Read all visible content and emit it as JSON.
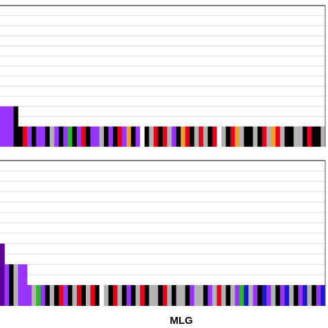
{
  "chart_data": [
    {
      "type": "bar",
      "values": [
        2,
        2,
        2,
        2,
        1,
        1,
        1,
        1,
        1,
        1,
        1,
        1,
        1,
        1,
        1,
        1,
        1,
        1,
        1,
        1,
        1,
        1,
        1,
        1,
        1,
        1,
        1,
        1,
        1,
        1,
        1,
        1,
        1,
        1,
        1,
        1,
        1,
        1,
        1,
        1,
        1,
        1,
        1,
        1,
        1,
        1,
        1,
        1,
        1,
        1,
        1,
        1,
        1,
        1,
        1,
        1,
        1,
        1,
        1,
        1,
        1,
        1,
        1,
        1,
        1,
        1,
        1,
        1,
        1,
        1,
        1,
        1
      ],
      "colors": [
        "#93f",
        "#93f",
        "#93f",
        "#000",
        "#000",
        "#e6001a",
        "#93f",
        "#000",
        "#93f",
        "#93f",
        "#000",
        "#b3b3b3",
        "#93f",
        "#000",
        "#93f",
        "#2eb82e",
        "#000",
        "#93f",
        "#e6001a",
        "#000",
        "#93f",
        "#93f",
        "#b3b3b3",
        "#000",
        "#93f",
        "#000",
        "#e6001a",
        "#93f",
        "#f0a030",
        "#000",
        "#93f",
        "#fff",
        "#000",
        "#b3b3b3",
        "#e6001a",
        "#000",
        "#e6001a",
        "#b3b3b3",
        "#93f",
        "#000",
        "#f0a030",
        "#e6001a",
        "#000",
        "#b3b3b3",
        "#e6001a",
        "#b3b3b3",
        "#000",
        "#e6001a",
        "#fff",
        "#b3b3b3",
        "#000",
        "#e6001a",
        "#f0a030",
        "#b3b3b3",
        "#000",
        "#000",
        "#b3b3b3",
        "#000",
        "#e6001a",
        "#b3b3b3",
        "#f0a030",
        "#e6001a",
        "#b3b3b3",
        "#000",
        "#000",
        "#b3b3b3",
        "#b3b3b3",
        "#000",
        "#e6001a",
        "#000",
        "#000",
        "#b3b3b3"
      ],
      "ylim": [
        0,
        7
      ],
      "yticks": [
        0,
        0.5,
        1,
        1.5,
        2,
        2.5,
        3,
        3.5,
        4,
        4.5,
        5,
        5.5,
        6,
        6.5,
        7
      ],
      "grid": true
    },
    {
      "type": "bar",
      "xlabel": "MLG",
      "values": [
        3,
        2,
        2,
        2,
        2,
        2,
        1,
        1,
        1,
        1,
        1,
        1,
        1,
        1,
        1,
        1,
        1,
        1,
        1,
        1,
        1,
        1,
        1,
        1,
        1,
        1,
        1,
        1,
        1,
        1,
        1,
        1,
        1,
        1,
        1,
        1,
        1,
        1,
        1,
        1,
        1,
        1,
        1,
        1,
        1,
        1,
        1,
        1,
        1,
        1,
        1,
        1,
        1,
        1,
        1,
        1,
        1,
        1,
        1,
        1,
        1,
        1,
        1,
        1,
        1,
        1,
        1,
        1,
        1,
        1,
        1,
        1
      ],
      "colors": [
        "#5c0099",
        "#93f",
        "#000",
        "#b3b3b3",
        "#93f",
        "#93f",
        "#93f",
        "#b3b3b3",
        "#2eb82e",
        "#93f",
        "#000",
        "#b3b3b3",
        "#000",
        "#e6001a",
        "#93f",
        "#000",
        "#b3b3b3",
        "#e6001a",
        "#000",
        "#b3b3b3",
        "#e6001a",
        "#000",
        "#fff",
        "#b3b3b3",
        "#000",
        "#e6001a",
        "#b3b3b3",
        "#000",
        "#93f",
        "#000",
        "#b3b3b3",
        "#e6001a",
        "#000",
        "#b3b3b3",
        "#b3b3b3",
        "#000",
        "#e6001a",
        "#b3b3b3",
        "#000",
        "#b3b3b3",
        "#b3b3b3",
        "#000",
        "#93f",
        "#b3b3b3",
        "#b3b3b3",
        "#000",
        "#93f",
        "#b3b3b3",
        "#e6001a",
        "#b3b3b3",
        "#000",
        "#b3b3b3",
        "#93f",
        "#2eb82e",
        "#1a1acc",
        "#b3b3b3",
        "#93f",
        "#000",
        "#1a1acc",
        "#93f",
        "#b3b3b3",
        "#000",
        "#93f",
        "#1a1acc",
        "#b3b3b3",
        "#000",
        "#93f",
        "#1a1acc",
        "#b3b3b3",
        "#000",
        "#93f",
        "#1a1acc"
      ],
      "ylim": [
        0,
        7
      ],
      "yticks": [
        0,
        0.5,
        1,
        1.5,
        2,
        2.5,
        3,
        3.5,
        4,
        4.5,
        5,
        5.5,
        6,
        6.5,
        7
      ],
      "grid": true
    }
  ]
}
